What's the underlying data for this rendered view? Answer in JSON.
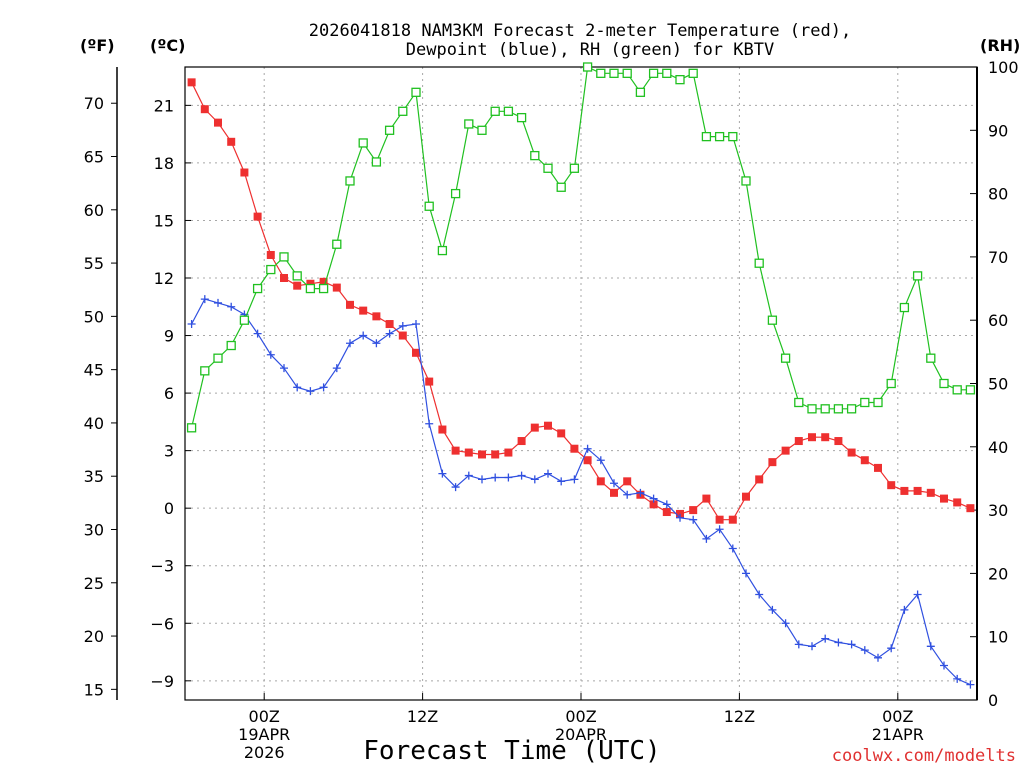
{
  "title_line1": "2026041818 NAM3KM Forecast 2-meter Temperature (red),",
  "title_line2": "Dewpoint (blue), RH (green) for KBTV",
  "credit": "coolwx.com/modelts",
  "chart_data": {
    "type": "line",
    "title": "2026041818 NAM3KM Forecast 2-meter Temperature (red), Dewpoint (blue), RH (green) for KBTV",
    "xlabel": "Forecast Time (UTC)",
    "x_hours_from_start": [
      0,
      60
    ],
    "x_ticks": [
      {
        "hour": 6,
        "lines": [
          "00Z",
          "19APR",
          "2026"
        ]
      },
      {
        "hour": 18,
        "lines": [
          "12Z"
        ]
      },
      {
        "hour": 30,
        "lines": [
          "00Z",
          "20APR"
        ]
      },
      {
        "hour": 42,
        "lines": [
          "12Z"
        ]
      },
      {
        "hour": 54,
        "lines": [
          "00Z",
          "21APR"
        ]
      }
    ],
    "axes": {
      "fahrenheit": {
        "unit_label": "(ºF)",
        "ticks": [
          15,
          20,
          25,
          30,
          35,
          40,
          45,
          50,
          55,
          60,
          65,
          70
        ]
      },
      "celsius": {
        "unit_label": "(ºC)",
        "ylim": [
          -10,
          23
        ],
        "ticks": [
          -9,
          -6,
          -3,
          0,
          3,
          6,
          9,
          12,
          15,
          18,
          21
        ]
      },
      "rh": {
        "unit_label": "(RH)",
        "ylim": [
          0,
          100
        ],
        "ticks": [
          0,
          10,
          20,
          30,
          40,
          50,
          60,
          70,
          80,
          90,
          100
        ]
      }
    },
    "series": [
      {
        "name": "Temperature",
        "unit": "°C",
        "color": "#ee3030",
        "marker": "filled-square",
        "values": [
          22.2,
          20.8,
          20.1,
          19.1,
          17.5,
          15.2,
          13.2,
          12.0,
          11.6,
          11.7,
          11.8,
          11.5,
          10.6,
          10.3,
          10.0,
          9.6,
          9.0,
          8.1,
          6.6,
          4.1,
          3.0,
          2.9,
          2.8,
          2.8,
          2.9,
          3.5,
          4.2,
          4.3,
          3.9,
          3.1,
          2.5,
          1.4,
          0.8,
          1.4,
          0.7,
          0.2,
          -0.2,
          -0.3,
          -0.1,
          0.5,
          -0.6,
          -0.6,
          0.6,
          1.5,
          2.4,
          3.0,
          3.5,
          3.7,
          3.7,
          3.5,
          2.9,
          2.5,
          2.1,
          1.2,
          0.9,
          0.9,
          0.8,
          0.5,
          0.3,
          0.0
        ]
      },
      {
        "name": "Dewpoint",
        "unit": "°C",
        "color": "#3050e0",
        "marker": "plus",
        "values": [
          9.6,
          10.9,
          10.7,
          10.5,
          10.1,
          9.1,
          8.0,
          7.3,
          6.3,
          6.1,
          6.3,
          7.3,
          8.6,
          9.0,
          8.6,
          9.1,
          9.5,
          9.6,
          4.4,
          1.8,
          1.1,
          1.7,
          1.5,
          1.6,
          1.6,
          1.7,
          1.5,
          1.8,
          1.4,
          1.5,
          3.1,
          2.5,
          1.3,
          0.7,
          0.8,
          0.5,
          0.2,
          -0.5,
          -0.6,
          -1.6,
          -1.1,
          -2.1,
          -3.4,
          -4.5,
          -5.3,
          -6.0,
          -7.1,
          -7.2,
          -6.8,
          -7.0,
          -7.1,
          -7.4,
          -7.8,
          -7.3,
          -5.3,
          -4.5,
          -7.2,
          -8.2,
          -8.9,
          -9.2
        ]
      },
      {
        "name": "RH",
        "unit": "%",
        "color": "#20c020",
        "marker": "open-square",
        "values": [
          43,
          52,
          54,
          56,
          60,
          65,
          68,
          70,
          67,
          65,
          65,
          72,
          82,
          88,
          85,
          90,
          93,
          96,
          78,
          71,
          80,
          91,
          90,
          93,
          93,
          92,
          86,
          84,
          81,
          84,
          100,
          99,
          99,
          99,
          96,
          99,
          99,
          98,
          99,
          89,
          89,
          89,
          82,
          69,
          60,
          54,
          47,
          46,
          46,
          46,
          46,
          47,
          47,
          50,
          62,
          67,
          54,
          50,
          49,
          49
        ]
      }
    ]
  }
}
